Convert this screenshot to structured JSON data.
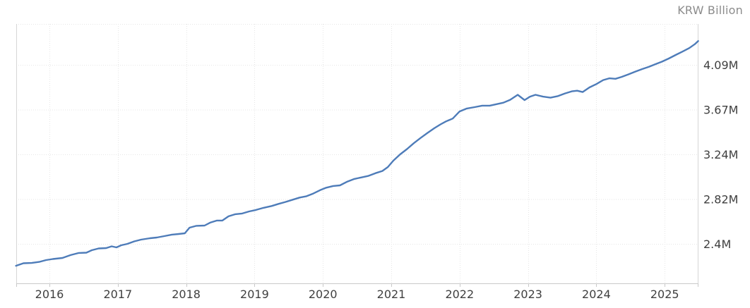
{
  "chart_data": {
    "type": "line",
    "title": "",
    "unit_label": "KRW Billion",
    "xlabel": "",
    "ylabel": "KRW Billion",
    "grid": true,
    "legend": "none",
    "xlim": [
      2015.51,
      2025.49
    ],
    "ylim": [
      2.03,
      4.48
    ],
    "x_ticks": [
      {
        "label": "2016",
        "year": 2016
      },
      {
        "label": "2017",
        "year": 2017
      },
      {
        "label": "2018",
        "year": 2018
      },
      {
        "label": "2019",
        "year": 2019
      },
      {
        "label": "2020",
        "year": 2020
      },
      {
        "label": "2021",
        "year": 2021
      },
      {
        "label": "2022",
        "year": 2022
      },
      {
        "label": "2023",
        "year": 2023
      },
      {
        "label": "2024",
        "year": 2024
      },
      {
        "label": "2025",
        "year": 2025
      }
    ],
    "y_ticks": [
      {
        "label": "2.4M",
        "value": 2.4
      },
      {
        "label": "2.82M",
        "value": 2.8225
      },
      {
        "label": "3.24M",
        "value": 3.245
      },
      {
        "label": "3.67M",
        "value": 3.6675
      },
      {
        "label": "4.09M",
        "value": 4.09
      }
    ],
    "series": [
      {
        "color": "#4e7cb9",
        "points": [
          [
            2015.51,
            2.193
          ],
          [
            2015.62,
            2.217
          ],
          [
            2015.74,
            2.22
          ],
          [
            2015.85,
            2.23
          ],
          [
            2015.95,
            2.247
          ],
          [
            2016.05,
            2.257
          ],
          [
            2016.19,
            2.267
          ],
          [
            2016.31,
            2.294
          ],
          [
            2016.43,
            2.314
          ],
          [
            2016.54,
            2.317
          ],
          [
            2016.62,
            2.34
          ],
          [
            2016.72,
            2.357
          ],
          [
            2016.83,
            2.36
          ],
          [
            2016.91,
            2.377
          ],
          [
            2016.98,
            2.367
          ],
          [
            2017.05,
            2.387
          ],
          [
            2017.14,
            2.4
          ],
          [
            2017.24,
            2.423
          ],
          [
            2017.34,
            2.44
          ],
          [
            2017.47,
            2.453
          ],
          [
            2017.57,
            2.46
          ],
          [
            2017.68,
            2.473
          ],
          [
            2017.79,
            2.487
          ],
          [
            2017.89,
            2.493
          ],
          [
            2017.98,
            2.5
          ],
          [
            2018.05,
            2.553
          ],
          [
            2018.15,
            2.57
          ],
          [
            2018.27,
            2.573
          ],
          [
            2018.35,
            2.6
          ],
          [
            2018.45,
            2.62
          ],
          [
            2018.53,
            2.62
          ],
          [
            2018.62,
            2.66
          ],
          [
            2018.72,
            2.68
          ],
          [
            2018.82,
            2.687
          ],
          [
            2018.92,
            2.706
          ],
          [
            2019.02,
            2.72
          ],
          [
            2019.13,
            2.74
          ],
          [
            2019.25,
            2.757
          ],
          [
            2019.35,
            2.777
          ],
          [
            2019.45,
            2.795
          ],
          [
            2019.56,
            2.817
          ],
          [
            2019.66,
            2.837
          ],
          [
            2019.76,
            2.85
          ],
          [
            2019.86,
            2.875
          ],
          [
            2019.96,
            2.907
          ],
          [
            2020.05,
            2.93
          ],
          [
            2020.15,
            2.946
          ],
          [
            2020.25,
            2.952
          ],
          [
            2020.36,
            2.988
          ],
          [
            2020.46,
            3.013
          ],
          [
            2020.56,
            3.027
          ],
          [
            2020.66,
            3.041
          ],
          [
            2020.77,
            3.067
          ],
          [
            2020.87,
            3.088
          ],
          [
            2020.95,
            3.125
          ],
          [
            2021.03,
            3.185
          ],
          [
            2021.13,
            3.245
          ],
          [
            2021.23,
            3.295
          ],
          [
            2021.33,
            3.35
          ],
          [
            2021.43,
            3.4
          ],
          [
            2021.53,
            3.447
          ],
          [
            2021.63,
            3.492
          ],
          [
            2021.72,
            3.528
          ],
          [
            2021.8,
            3.556
          ],
          [
            2021.9,
            3.583
          ],
          [
            2022.0,
            3.65
          ],
          [
            2022.1,
            3.677
          ],
          [
            2022.22,
            3.691
          ],
          [
            2022.33,
            3.705
          ],
          [
            2022.44,
            3.705
          ],
          [
            2022.54,
            3.719
          ],
          [
            2022.64,
            3.733
          ],
          [
            2022.74,
            3.76
          ],
          [
            2022.85,
            3.807
          ],
          [
            2022.95,
            3.757
          ],
          [
            2023.03,
            3.79
          ],
          [
            2023.11,
            3.807
          ],
          [
            2023.22,
            3.79
          ],
          [
            2023.33,
            3.78
          ],
          [
            2023.44,
            3.795
          ],
          [
            2023.54,
            3.82
          ],
          [
            2023.64,
            3.84
          ],
          [
            2023.72,
            3.846
          ],
          [
            2023.8,
            3.833
          ],
          [
            2023.9,
            3.877
          ],
          [
            2024.0,
            3.908
          ],
          [
            2024.1,
            3.946
          ],
          [
            2024.19,
            3.963
          ],
          [
            2024.28,
            3.958
          ],
          [
            2024.37,
            3.976
          ],
          [
            2024.47,
            4.0
          ],
          [
            2024.57,
            4.026
          ],
          [
            2024.67,
            4.05
          ],
          [
            2024.77,
            4.072
          ],
          [
            2024.86,
            4.095
          ],
          [
            2024.96,
            4.12
          ],
          [
            2025.06,
            4.15
          ],
          [
            2025.16,
            4.183
          ],
          [
            2025.26,
            4.215
          ],
          [
            2025.36,
            4.248
          ],
          [
            2025.44,
            4.285
          ],
          [
            2025.49,
            4.315
          ]
        ]
      }
    ],
    "colors": {
      "line": "#4e7cb9",
      "grid": "#e6e6e6",
      "axis_border": "#d6d6d6",
      "bottom_axis": "#c9c9c9",
      "tick_text": "#3f3f3f",
      "unit_text": "#8c8c8c",
      "background": "#ffffff"
    }
  }
}
